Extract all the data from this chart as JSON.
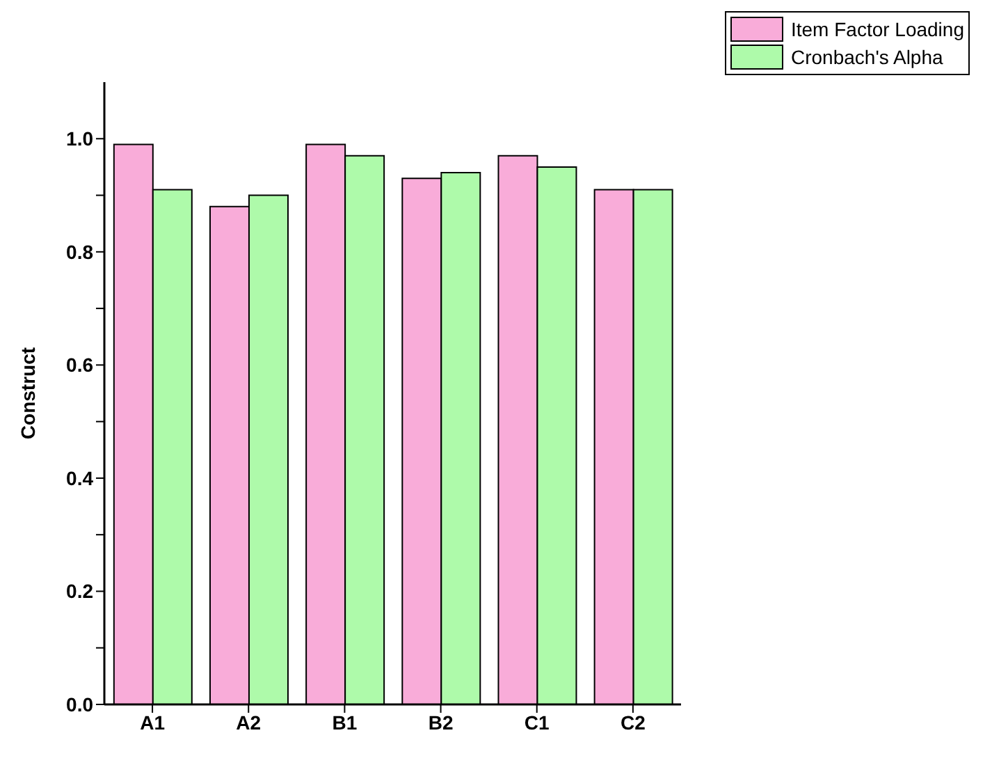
{
  "chart_data": {
    "type": "bar",
    "ylabel": "Construct",
    "categories": [
      "A1",
      "A2",
      "B1",
      "B2",
      "C1",
      "C2"
    ],
    "series": [
      {
        "name": "Item Factor Loading",
        "color": "#f9acd9",
        "values": [
          0.99,
          0.88,
          0.99,
          0.93,
          0.97,
          0.91
        ]
      },
      {
        "name": "Cronbach's Alpha",
        "color": "#aefaaa",
        "values": [
          0.91,
          0.9,
          0.97,
          0.94,
          0.95,
          0.91
        ]
      }
    ],
    "ylim": [
      0,
      1.1
    ],
    "yticks": [
      {
        "value": 0.0,
        "label": "0.0"
      },
      {
        "value": 0.1,
        "label": null
      },
      {
        "value": 0.2,
        "label": "0.2"
      },
      {
        "value": 0.3,
        "label": null
      },
      {
        "value": 0.4,
        "label": "0.4"
      },
      {
        "value": 0.5,
        "label": null
      },
      {
        "value": 0.6,
        "label": "0.6"
      },
      {
        "value": 0.7,
        "label": null
      },
      {
        "value": 0.8,
        "label": "0.8"
      },
      {
        "value": 0.9,
        "label": null
      },
      {
        "value": 1.0,
        "label": "1.0"
      }
    ],
    "grid": false,
    "legend": "top right"
  }
}
